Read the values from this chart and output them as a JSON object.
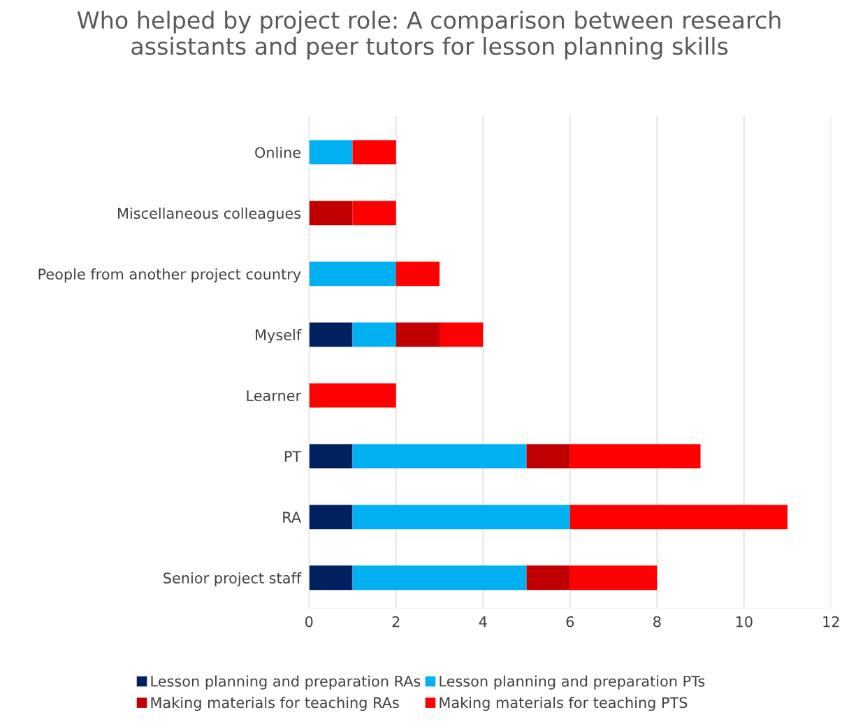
{
  "chart_data": {
    "type": "bar",
    "orientation": "horizontal",
    "stacked": true,
    "title": "Who helped by project role: A comparison between research assistants and peer tutors for lesson planning skills",
    "categories": [
      "Online",
      "Miscellaneous colleagues",
      "People from another project country",
      "Myself",
      "Learner",
      "PT",
      "RA",
      "Senior project staff"
    ],
    "series": [
      {
        "name": "Lesson planning and preparation RAs",
        "color": "#002060",
        "values": [
          0,
          0,
          0,
          1,
          0,
          1,
          1,
          1
        ]
      },
      {
        "name": "Lesson planning and preparation PTs",
        "color": "#00b0f0",
        "values": [
          1,
          0,
          2,
          1,
          0,
          4,
          5,
          4
        ]
      },
      {
        "name": "Making materials for teaching RAs",
        "color": "#c00000",
        "values": [
          0,
          1,
          0,
          1,
          0,
          1,
          0,
          1
        ]
      },
      {
        "name": "Making materials for teaching PTS",
        "color": "#ff0000",
        "values": [
          1,
          1,
          1,
          1,
          2,
          3,
          5,
          2
        ]
      }
    ],
    "xlim": [
      0,
      12
    ],
    "xticks": [
      0,
      2,
      4,
      6,
      8,
      10,
      12
    ],
    "grid": "x",
    "legend": "bottom"
  }
}
